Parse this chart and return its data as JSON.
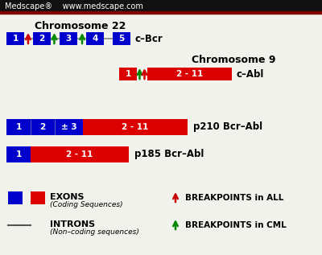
{
  "bg_color": "#f2f2ec",
  "header_bg": "#111111",
  "header_red": "#800000",
  "header_text": "Medscape®    www.medscape.com",
  "blue": "#0000cc",
  "red": "#dd0000",
  "green_arrow": "#008800",
  "red_arrow": "#cc0000",
  "chr22_title": "Chromosome 22",
  "chr9_title": "Chromosome 9",
  "cbcr_label": "c–Bcr",
  "cabl_label": "c–Abl",
  "p210_label": "p210 Bcr–Abl",
  "p185_label": "p185 Bcr–Abl",
  "exons_label": "EXONS",
  "exons_sub": "(Coding Sequences)",
  "introns_label": "INTRONS",
  "introns_sub": "(Non–coding sequences)",
  "bp_all_label": "BREAKPOINTS in ALL",
  "bp_cml_label": "BREAKPOINTS in CML"
}
